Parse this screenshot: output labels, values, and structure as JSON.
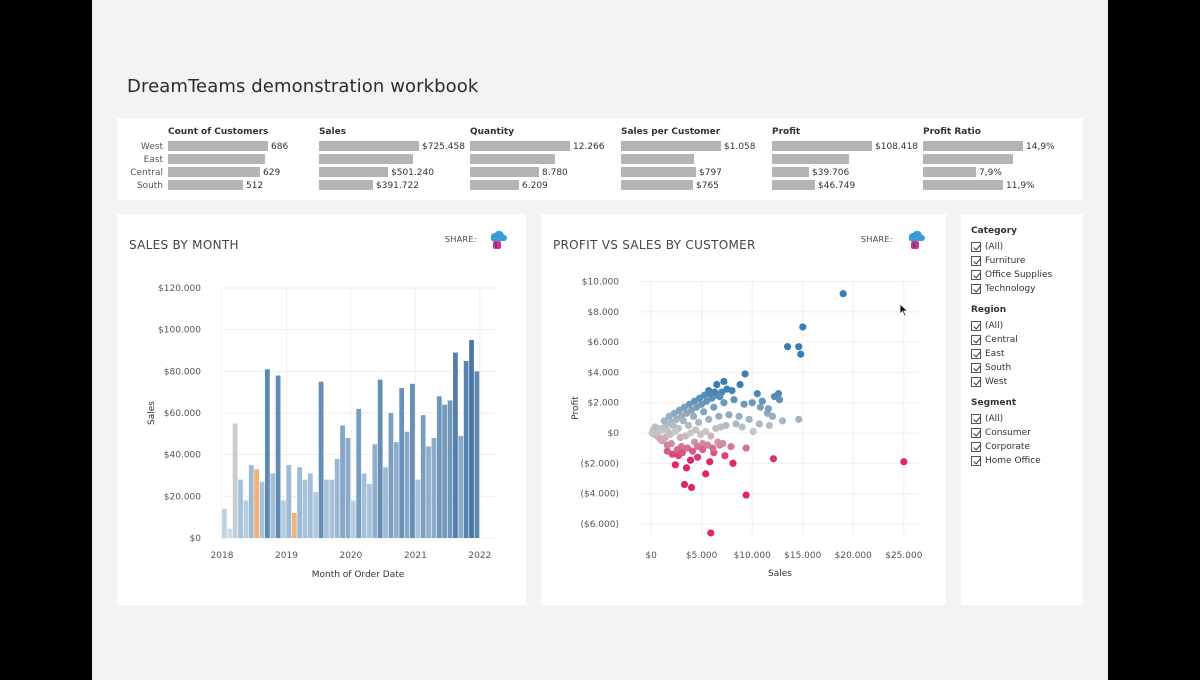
{
  "workbook": {
    "title": "DreamTeams demonstration workbook"
  },
  "kpi": {
    "regions": [
      "West",
      "East",
      "Central",
      "South"
    ],
    "metrics": [
      {
        "header": "Count of Customers",
        "values": [
          "686",
          "",
          "629",
          "512"
        ],
        "fractions": [
          1.0,
          0.97,
          0.92,
          0.75
        ]
      },
      {
        "header": "Sales",
        "values": [
          "$725.458",
          "",
          "$501.240",
          "$391.722"
        ],
        "fractions": [
          1.0,
          0.94,
          0.69,
          0.54
        ]
      },
      {
        "header": "Quantity",
        "values": [
          "12.266",
          "",
          "8.780",
          "6.209"
        ],
        "fractions": [
          1.0,
          0.85,
          0.69,
          0.49
        ]
      },
      {
        "header": "Sales per Customer",
        "values": [
          "$1.058",
          "",
          "$797",
          "$765"
        ],
        "fractions": [
          1.0,
          0.73,
          0.75,
          0.72
        ]
      },
      {
        "header": "Profit",
        "values": [
          "$108.418",
          "",
          "$39.706",
          "$46.749"
        ],
        "fractions": [
          1.0,
          0.77,
          0.37,
          0.43
        ]
      },
      {
        "header": "Profit Ratio",
        "values": [
          "14,9%",
          "",
          "7,9%",
          "11,9%"
        ],
        "fractions": [
          1.0,
          0.9,
          0.53,
          0.8
        ]
      }
    ]
  },
  "month_panel": {
    "title": "SALES BY MONTH",
    "share_label": "SHARE:"
  },
  "scatter_panel": {
    "title": "PROFIT VS SALES BY CUSTOMER",
    "share_label": "SHARE:"
  },
  "filters": {
    "groups": [
      {
        "header": "Category",
        "items": [
          "(All)",
          "Furniture",
          "Office Supplies",
          "Technology"
        ]
      },
      {
        "header": "Region",
        "items": [
          "(All)",
          "Central",
          "East",
          "South",
          "West"
        ]
      },
      {
        "header": "Segment",
        "items": [
          "(All)",
          "Consumer",
          "Corporate",
          "Home Office"
        ]
      }
    ]
  },
  "colors": {
    "bar_low": "#c9dcec",
    "bar_high": "#4a78a6",
    "bar_grey": "#c9cdd1",
    "bar_orange": "#f2b377",
    "kpi_bar": "#b4b4b4",
    "profit_pos": "#3a7fb4",
    "profit_neg": "#e0266a"
  },
  "chart_data": [
    {
      "type": "bar",
      "title": "SALES BY MONTH",
      "xlabel": "Month of Order Date",
      "ylabel": "Sales",
      "ylim": [
        0,
        120000
      ],
      "yticks": [
        "$0",
        "$20.000",
        "$40.000",
        "$60.000",
        "$80.000",
        "$100.000",
        "$120.000"
      ],
      "xticks": [
        "2018",
        "2019",
        "2020",
        "2021",
        "2022"
      ],
      "values": [
        14000,
        4500,
        55000,
        28000,
        18000,
        35000,
        33000,
        27000,
        81000,
        31000,
        78000,
        18000,
        35000,
        12000,
        34000,
        28000,
        31000,
        22000,
        75000,
        28000,
        28000,
        38000,
        54000,
        48000,
        18000,
        62000,
        31000,
        26000,
        45000,
        76000,
        34000,
        60000,
        46000,
        72000,
        51000,
        74000,
        28000,
        59000,
        44000,
        48000,
        68000,
        64000,
        66000,
        89000,
        49000,
        85000,
        95000,
        80000
      ]
    },
    {
      "type": "scatter",
      "title": "PROFIT VS SALES BY CUSTOMER",
      "xlabel": "Sales",
      "ylabel": "Profit",
      "xlim": [
        -1000,
        26500
      ],
      "ylim": [
        -7000,
        10300
      ],
      "xticks": [
        "$0",
        "$5.000",
        "$10.000",
        "$15.000",
        "$20.000",
        "$25.000"
      ],
      "yticks": [
        "($6.000)",
        "($4.000)",
        "($2.000)",
        "$0",
        "$2.000",
        "$4.000",
        "$6.000",
        "$8.000",
        "$10.000"
      ],
      "points": [
        [
          19000,
          9200
        ],
        [
          15000,
          7000
        ],
        [
          13500,
          5700
        ],
        [
          14600,
          5700
        ],
        [
          14800,
          5200
        ],
        [
          9300,
          3900
        ],
        [
          8800,
          3200
        ],
        [
          10500,
          2600
        ],
        [
          12200,
          2400
        ],
        [
          12600,
          2600
        ],
        [
          12700,
          2200
        ],
        [
          11000,
          2100
        ],
        [
          11500,
          1300
        ],
        [
          12000,
          1100
        ],
        [
          14600,
          900
        ],
        [
          10100,
          100
        ],
        [
          12100,
          -1700
        ],
        [
          25000,
          -1900
        ],
        [
          3500,
          -2300
        ],
        [
          5400,
          -2700
        ],
        [
          3300,
          -3400
        ],
        [
          4000,
          -3600
        ],
        [
          9400,
          -4100
        ],
        [
          5900,
          -6600
        ],
        [
          2400,
          -2100
        ],
        [
          5800,
          -1900
        ],
        [
          8100,
          -2000
        ],
        [
          6200,
          -1300
        ],
        [
          7300,
          -1500
        ],
        [
          4600,
          -1600
        ],
        [
          3900,
          -1800
        ],
        [
          2700,
          -1500
        ],
        [
          1600,
          -800
        ],
        [
          1100,
          -500
        ],
        [
          800,
          -300
        ],
        [
          2000,
          -700
        ],
        [
          3000,
          -900
        ],
        [
          4300,
          -600
        ],
        [
          5100,
          -700
        ],
        [
          6800,
          -800
        ],
        [
          7900,
          -900
        ],
        [
          9400,
          -1000
        ],
        [
          500,
          100
        ],
        [
          1000,
          300
        ],
        [
          1500,
          500
        ],
        [
          2000,
          700
        ],
        [
          2500,
          900
        ],
        [
          3000,
          1100
        ],
        [
          3500,
          1300
        ],
        [
          4000,
          1500
        ],
        [
          4500,
          1700
        ],
        [
          5000,
          1900
        ],
        [
          5500,
          2100
        ],
        [
          6000,
          2300
        ],
        [
          6500,
          2500
        ],
        [
          7000,
          2700
        ],
        [
          7500,
          2900
        ],
        [
          8000,
          2800
        ],
        [
          6500,
          3200
        ],
        [
          7200,
          3400
        ],
        [
          5700,
          2800
        ],
        [
          1200,
          200
        ],
        [
          2200,
          500
        ],
        [
          3200,
          800
        ],
        [
          4200,
          1100
        ],
        [
          5200,
          1400
        ],
        [
          6200,
          1700
        ],
        [
          7200,
          2000
        ],
        [
          8200,
          2200
        ],
        [
          9200,
          1900
        ],
        [
          10000,
          2000
        ],
        [
          10800,
          1700
        ],
        [
          11600,
          1600
        ],
        [
          700,
          0
        ],
        [
          1700,
          100
        ],
        [
          2700,
          300
        ],
        [
          3700,
          500
        ],
        [
          4700,
          700
        ],
        [
          5700,
          900
        ],
        [
          6700,
          1100
        ],
        [
          7700,
          1200
        ],
        [
          8700,
          1100
        ],
        [
          9700,
          900
        ],
        [
          10700,
          600
        ],
        [
          11700,
          500
        ],
        [
          13000,
          800
        ],
        [
          100,
          0
        ],
        [
          300,
          -100
        ],
        [
          600,
          -200
        ],
        [
          900,
          -400
        ],
        [
          1400,
          -300
        ],
        [
          1900,
          -100
        ],
        [
          2400,
          100
        ],
        [
          2900,
          -300
        ],
        [
          3400,
          -200
        ],
        [
          3900,
          0
        ],
        [
          4400,
          200
        ],
        [
          4900,
          -100
        ],
        [
          5400,
          100
        ],
        [
          5900,
          -200
        ],
        [
          6400,
          300
        ],
        [
          6900,
          400
        ],
        [
          7400,
          500
        ],
        [
          8400,
          600
        ],
        [
          9000,
          400
        ],
        [
          200,
          200
        ],
        [
          400,
          400
        ],
        [
          1300,
          800
        ],
        [
          1800,
          1100
        ],
        [
          2300,
          1300
        ],
        [
          2800,
          1500
        ],
        [
          3300,
          1700
        ],
        [
          3800,
          1900
        ],
        [
          4300,
          2100
        ],
        [
          4800,
          2300
        ],
        [
          5300,
          2500
        ],
        [
          5800,
          2600
        ],
        [
          6300,
          2700
        ],
        [
          6800,
          2400
        ],
        [
          1600,
          -1200
        ],
        [
          2100,
          -1400
        ],
        [
          2600,
          -1100
        ],
        [
          3100,
          -1300
        ],
        [
          3600,
          -1000
        ],
        [
          4100,
          -1200
        ],
        [
          4600,
          -900
        ],
        [
          5100,
          -1100
        ],
        [
          5600,
          -800
        ],
        [
          6100,
          -1000
        ],
        [
          6600,
          -600
        ],
        [
          7100,
          -700
        ]
      ]
    }
  ]
}
